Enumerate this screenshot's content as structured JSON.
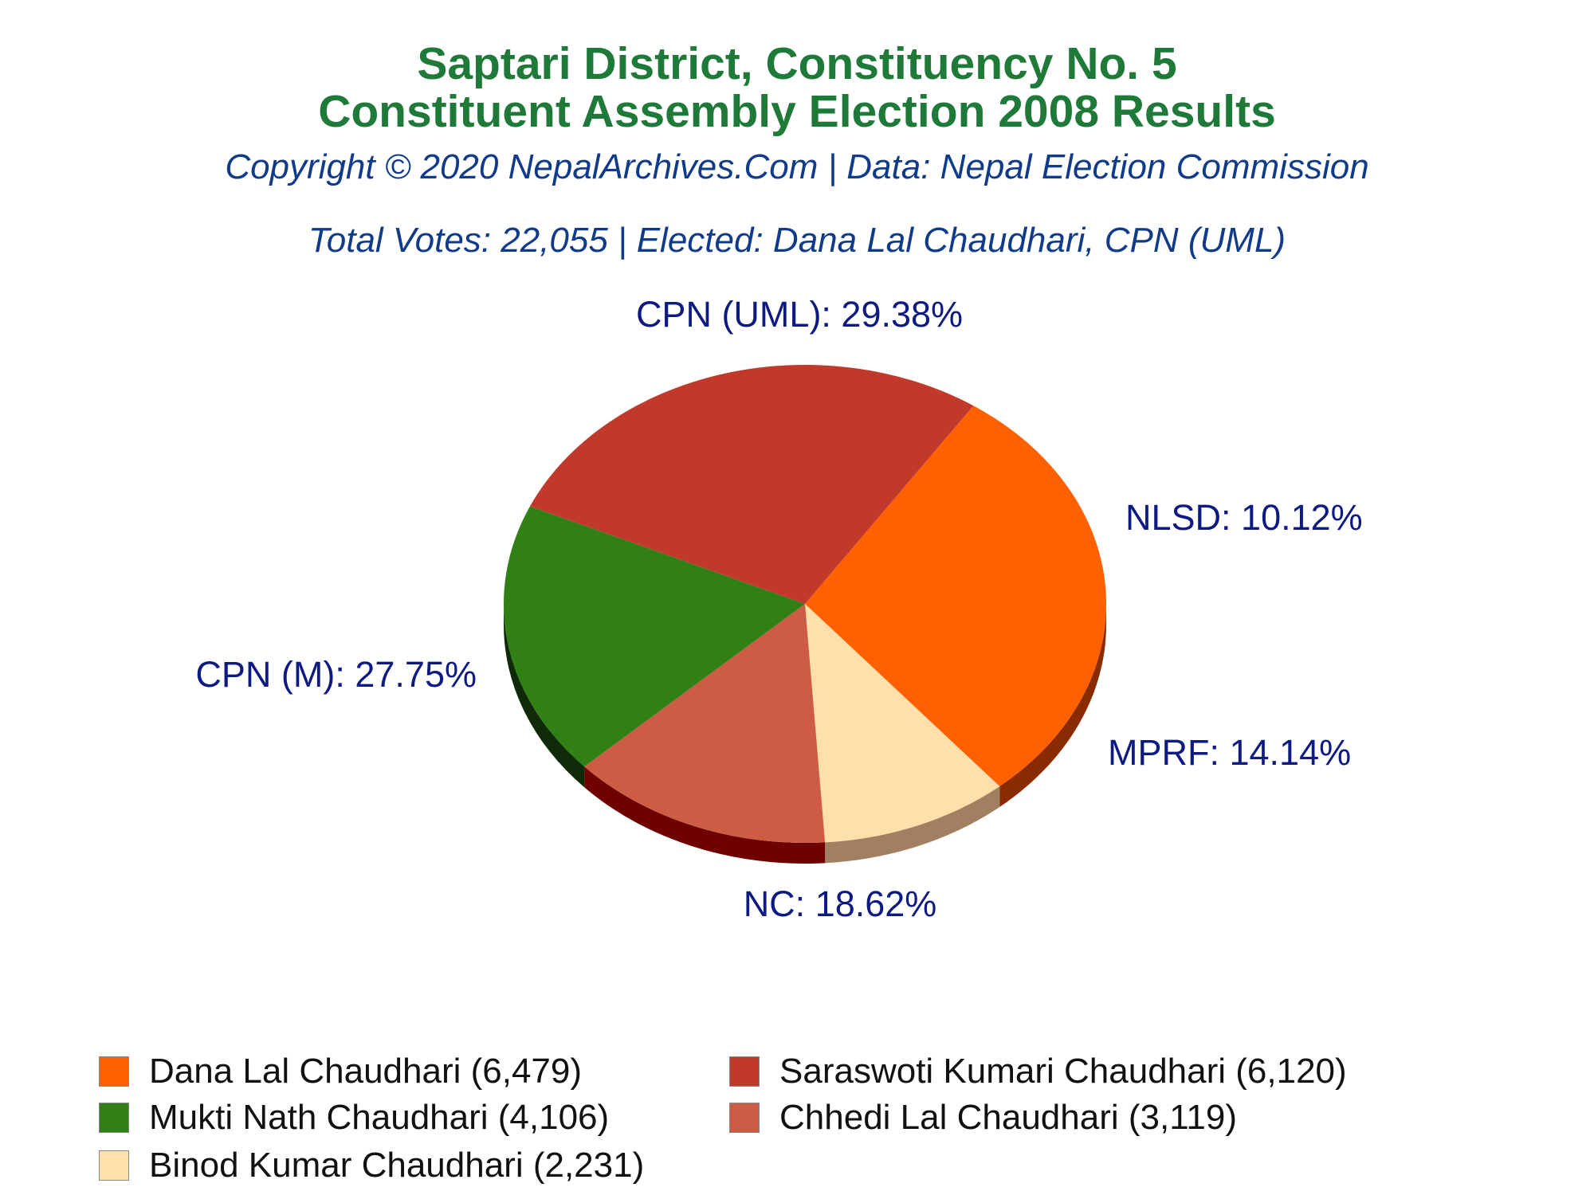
{
  "title_line1": "Saptari District, Constituency No. 5",
  "title_line2": "Constituent Assembly Election 2008 Results",
  "copyright": "Copyright © 2020 NepalArchives.Com | Data: Nepal Election Commission",
  "summary": "Total Votes: 22,055 | Elected: Dana Lal Chaudhari, CPN (UML)",
  "chart_data": {
    "type": "pie",
    "slices": [
      {
        "party": "CPN (UML)",
        "percent": 29.38,
        "candidate": "Dana Lal Chaudhari",
        "votes": 6479,
        "color": "#ff6000",
        "side_color": "#8a2a00",
        "label": "CPN (UML): 29.38%",
        "legend": "Dana Lal Chaudhari (6,479)"
      },
      {
        "party": "NLSD",
        "percent": 10.12,
        "candidate": "Binod Kumar Chaudhari",
        "votes": 2231,
        "color": "#ffdfaa",
        "side_color": "#a08060",
        "label": "NLSD: 10.12%",
        "legend": "Binod Kumar Chaudhari (2,231)"
      },
      {
        "party": "MPRF",
        "percent": 14.14,
        "candidate": "Chhedi Lal Chaudhari",
        "votes": 3119,
        "color": "#cd5c45",
        "side_color": "#6e0000",
        "label": "MPRF: 14.14%",
        "legend": "Chhedi Lal Chaudhari (3,119)"
      },
      {
        "party": "NC",
        "percent": 18.62,
        "candidate": "Mukti Nath Chaudhari",
        "votes": 4106,
        "color": "#318016",
        "side_color": "#0e2a06",
        "label": "NC: 18.62%",
        "legend": "Mukti Nath Chaudhari (4,106)"
      },
      {
        "party": "CPN (M)",
        "percent": 27.75,
        "candidate": "Saraswoti Kumari Chaudhari",
        "votes": 6120,
        "color": "#c0392b",
        "side_color": "#5a0000",
        "label": "CPN (M): 27.75%",
        "legend": "Saraswoti Kumari Chaudhari (6,120)"
      }
    ],
    "legend_order": [
      0,
      4,
      3,
      2,
      1
    ]
  }
}
